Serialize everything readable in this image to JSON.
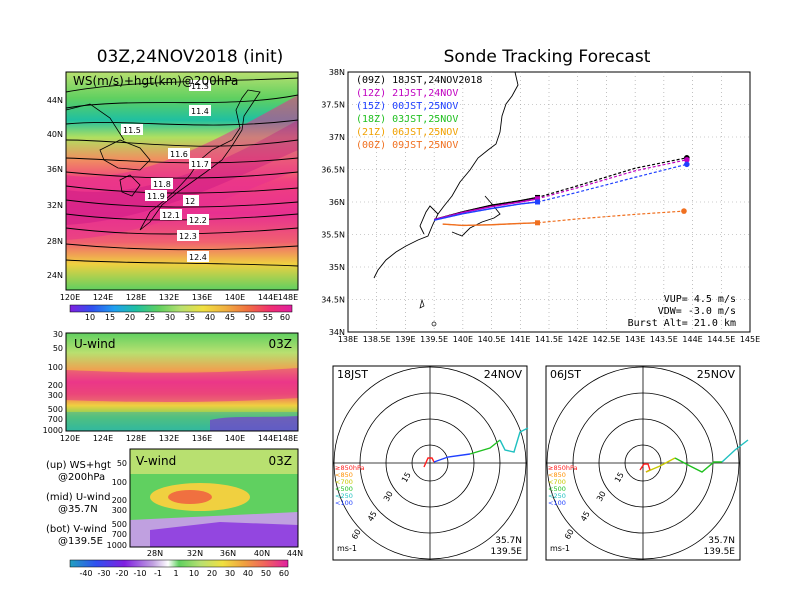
{
  "left_panel": {
    "title": "03Z,24NOV2018 (init)",
    "map_label": "WS(m/s)+hgt(km)@200hPa",
    "lon_ticks": [
      "120E",
      "124E",
      "128E",
      "132E",
      "136E",
      "140E",
      "144E",
      "148E"
    ],
    "lat_ticks": [
      "44N",
      "40N",
      "36N",
      "32N",
      "28N",
      "24N"
    ],
    "contour_labels": [
      "11.3",
      "11.4",
      "11.5",
      "11.6",
      "11.7",
      "11.8",
      "11.9",
      "12",
      "12.1",
      "12.2",
      "12.3",
      "12.4"
    ],
    "colorbar_ticks": [
      "10",
      "15",
      "20",
      "25",
      "30",
      "35",
      "40",
      "45",
      "50",
      "55",
      "60"
    ],
    "uwind_label": "U-wind",
    "uwind_time": "03Z",
    "vwind_label": "V-wind",
    "vwind_time": "03Z",
    "pressure_ticks": [
      "30",
      "50",
      "100",
      "200",
      "300",
      "500",
      "700",
      "1000"
    ],
    "vwind_pressure_ticks": [
      "50",
      "100",
      "200",
      "300",
      "500",
      "700",
      "1000"
    ],
    "vwind_lat_ticks": [
      "28N",
      "32N",
      "36N",
      "40N",
      "44N"
    ],
    "vwind_colorbar_ticks": [
      "-40",
      "-30",
      "-20",
      "-10",
      "-1",
      "1",
      "10",
      "20",
      "30",
      "40",
      "50",
      "60"
    ],
    "legend_lines": [
      "(up) WS+hgt",
      "@200hPa",
      "(mid) U-wind",
      "@35.7N",
      "(bot) V-wind",
      "@139.5E"
    ]
  },
  "right_panel": {
    "title": "Sonde Tracking Forecast",
    "lat_ticks": [
      "38N",
      "37.5N",
      "37N",
      "36.5N",
      "36N",
      "35.5N",
      "35N",
      "34.5N",
      "34N"
    ],
    "lon_ticks": [
      "138E",
      "138.5E",
      "139E",
      "139.5E",
      "140E",
      "140.5E",
      "141E",
      "141.5E",
      "142E",
      "142.5E",
      "143E",
      "143.5E",
      "144E",
      "144.5E",
      "145E"
    ],
    "legend": [
      {
        "code": "(09Z)",
        "time": "18JST,24NOV2018",
        "color": "#000000"
      },
      {
        "code": "(12Z)",
        "time": "21JST,24NOV",
        "color": "#c000c0"
      },
      {
        "code": "(15Z)",
        "time": "00JST,25NOV",
        "color": "#2040ff"
      },
      {
        "code": "(18Z)",
        "time": "03JST,25NOV",
        "color": "#20c020"
      },
      {
        "code": "(21Z)",
        "time": "06JST,25NOV",
        "color": "#f0a000"
      },
      {
        "code": "(00Z)",
        "time": "09JST,25NOV",
        "color": "#f07020"
      }
    ],
    "vup": "VUP= 4.5 m/s",
    "vdw": "VDW= -3.0 m/s",
    "burst": "Burst Alt= 21.0 km",
    "hodo1": {
      "time": "18JST",
      "date": "24NOV",
      "lat": "35.7N",
      "lon": "139.5E",
      "unit": "ms-1"
    },
    "hodo2": {
      "time": "06JST",
      "date": "25NOV",
      "lat": "35.7N",
      "lon": "139.5E",
      "unit": "ms-1"
    },
    "ring_labels": [
      "15",
      "30",
      "45",
      "60"
    ],
    "pressure_legend": [
      "≥850hPa",
      "<850",
      "<700",
      "<500",
      "<250",
      "<100"
    ],
    "pressure_colors": [
      "#ff2020",
      "#ff9000",
      "#c8c800",
      "#20c020",
      "#20c0c0",
      "#2040ff"
    ]
  },
  "chart_data": [
    {
      "type": "heatmap",
      "title": "03Z,24NOV2018 (init)",
      "label": "WS(m/s)+hgt(km)@200hPa",
      "xlim": [
        "120E",
        "148E"
      ],
      "ylim": [
        "22N",
        "46N"
      ],
      "contours_km": [
        11.3,
        11.4,
        11.5,
        11.6,
        11.7,
        11.8,
        11.9,
        12,
        12.1,
        12.2,
        12.3,
        12.4
      ],
      "colorbar": [
        10,
        15,
        20,
        25,
        30,
        35,
        40,
        45,
        50,
        55,
        60
      ]
    },
    {
      "type": "line",
      "title": "Sonde Tracking Forecast",
      "xlim": [
        138,
        145
      ],
      "ylim": [
        34,
        38
      ],
      "series": [
        {
          "name": "(09Z) 18JST,24NOV2018",
          "color": "#000000",
          "x": [
            139.5,
            140.0,
            140.5,
            141.0,
            141.3,
            142.0,
            143.0,
            143.9
          ],
          "y": [
            35.73,
            35.85,
            35.95,
            36.02,
            36.07,
            36.25,
            36.52,
            36.68
          ]
        },
        {
          "name": "(12Z) 21JST,24NOV",
          "color": "#c000c0",
          "x": [
            139.5,
            140.0,
            140.5,
            141.0,
            141.3,
            142.0,
            143.0,
            143.9
          ],
          "y": [
            35.73,
            35.84,
            35.93,
            36.0,
            36.05,
            36.22,
            36.48,
            36.65
          ]
        },
        {
          "name": "(15Z) 00JST,25NOV",
          "color": "#2040ff",
          "x": [
            139.5,
            140.0,
            140.5,
            141.0,
            141.3,
            142.0,
            143.0,
            143.9
          ],
          "y": [
            35.72,
            35.82,
            35.9,
            35.97,
            36.0,
            36.15,
            36.38,
            36.58
          ]
        },
        {
          "name": "(00Z) 09JST,25NOV",
          "color": "#f07020",
          "x": [
            139.65,
            140.0,
            140.5,
            141.0,
            141.3,
            142.0,
            143.0,
            143.85
          ],
          "y": [
            35.66,
            35.64,
            35.65,
            35.67,
            35.68,
            35.74,
            35.81,
            35.86
          ]
        }
      ],
      "vup_ms": 4.5,
      "vdw_ms": -3.0,
      "burst_alt_km": 21.0
    }
  ]
}
